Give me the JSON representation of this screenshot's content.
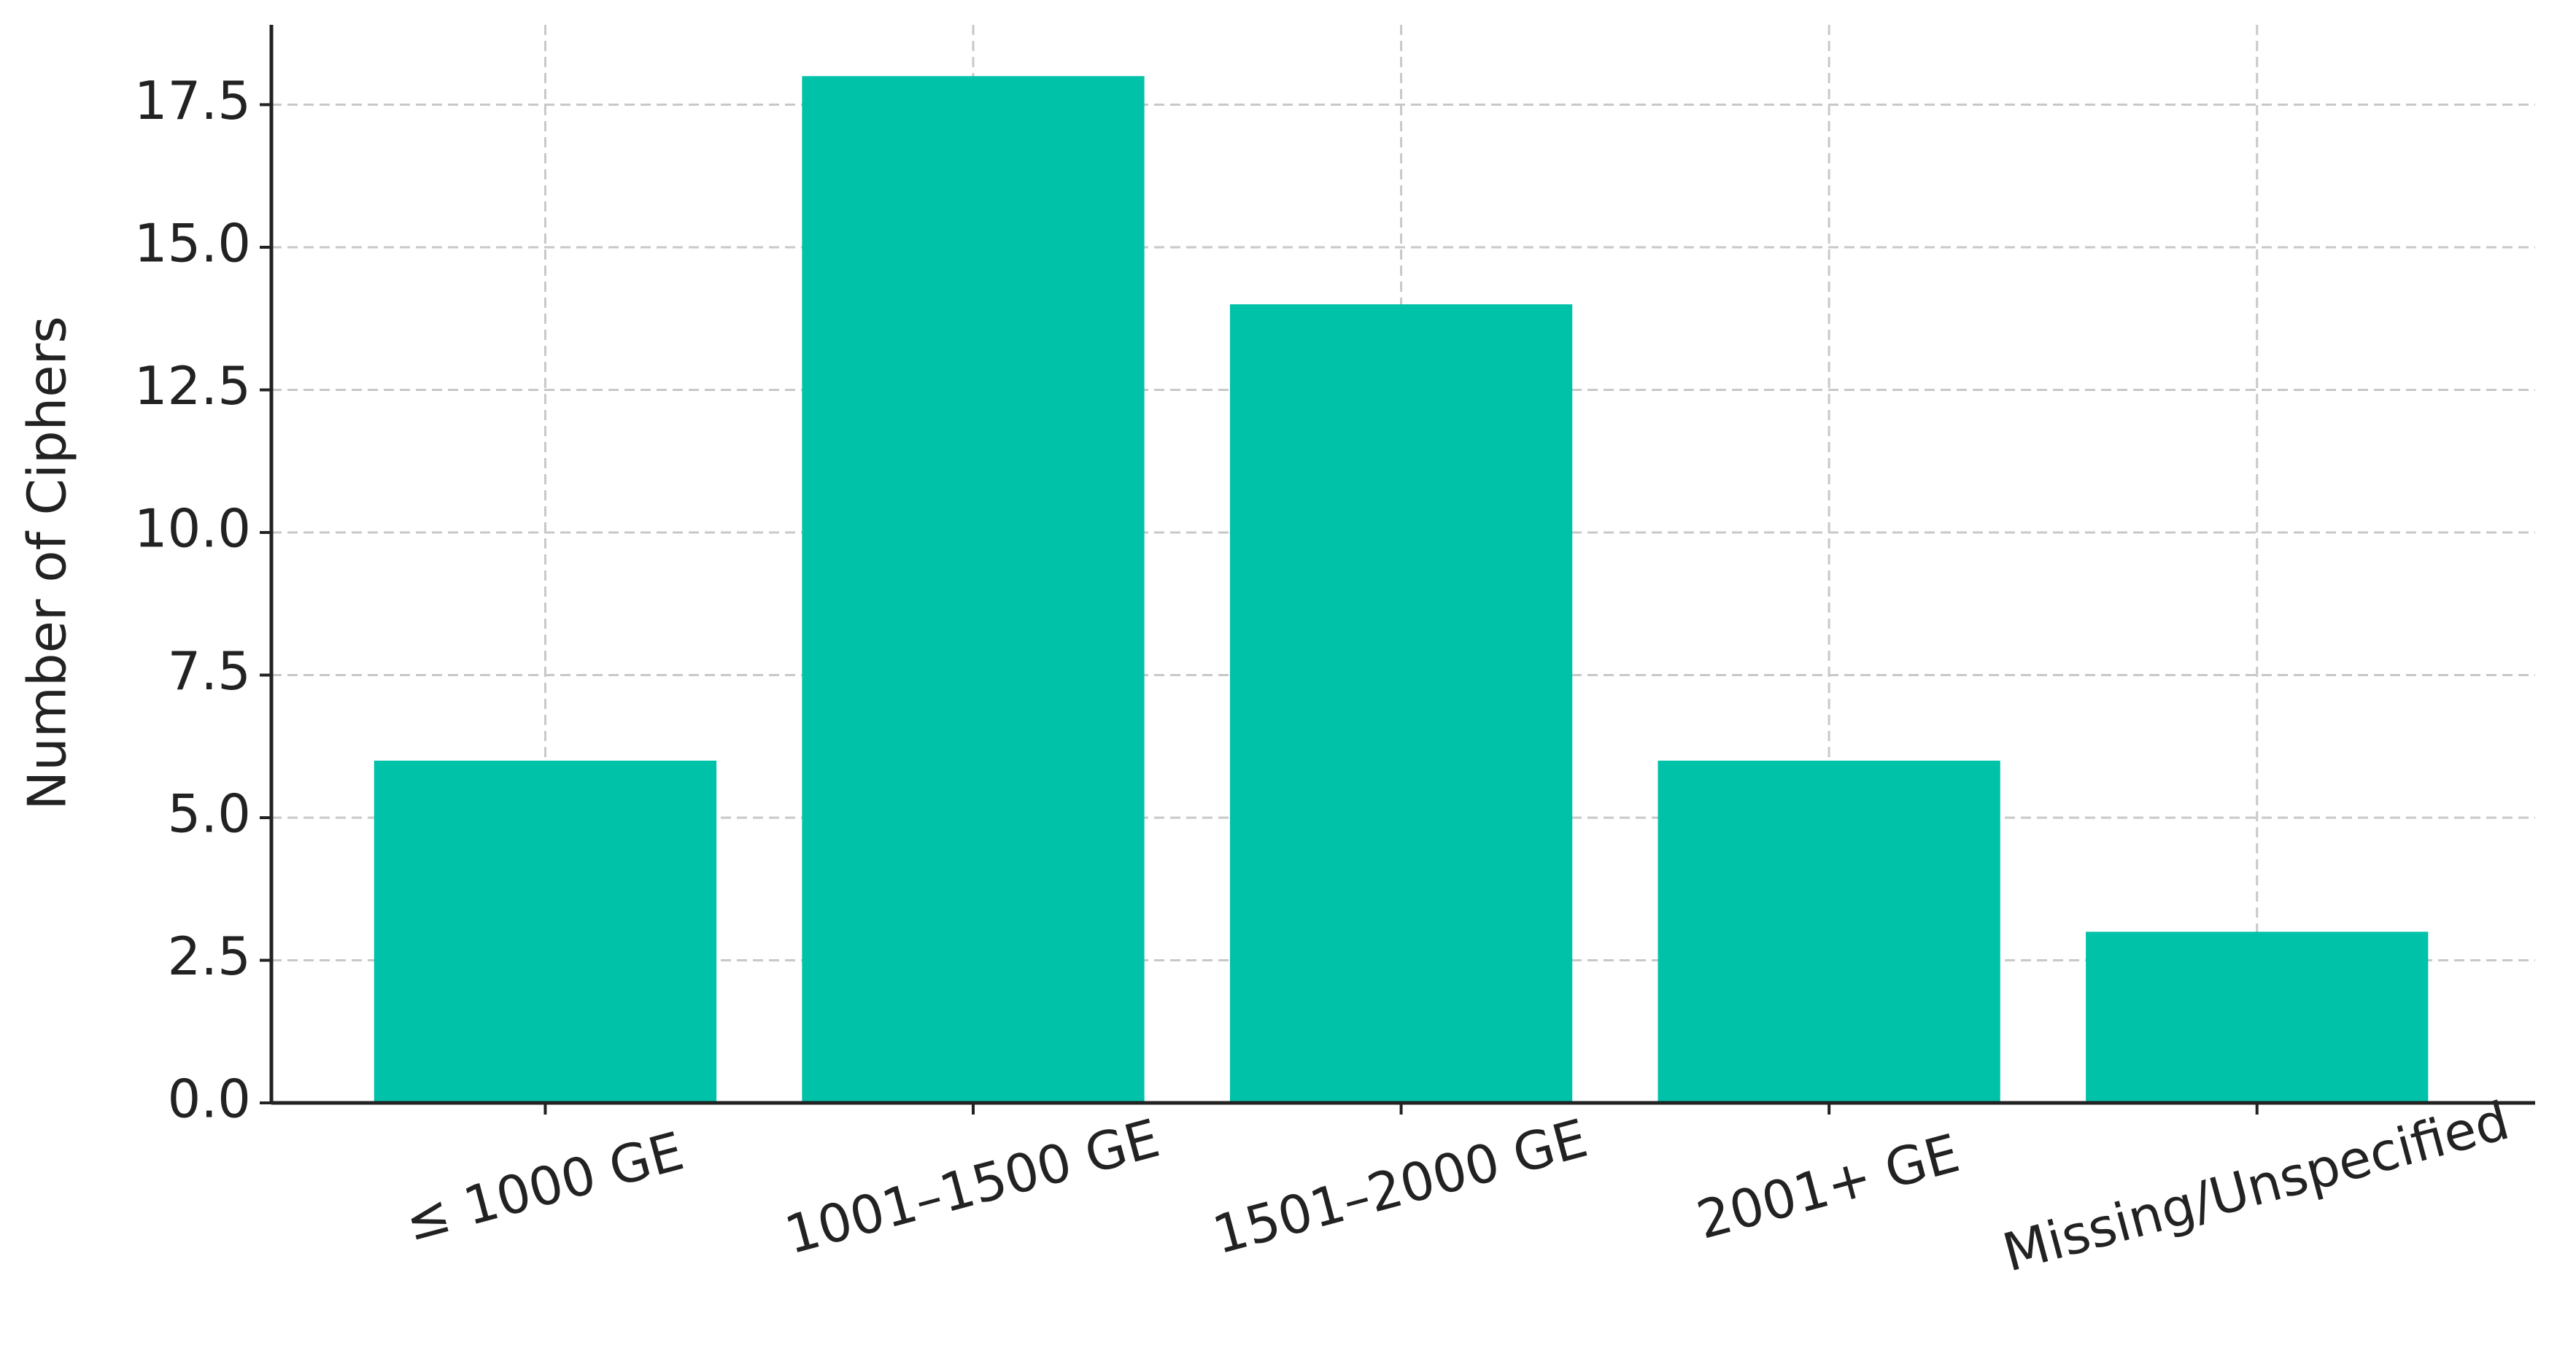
{
  "chart_data": {
    "type": "bar",
    "ylabel": "Number of Ciphers",
    "categories": [
      "≤ 1000 GE",
      "1001–1500 GE",
      "1501–2000 GE",
      "2001+ GE",
      "Missing/Unspecified"
    ],
    "values": [
      6,
      18,
      14,
      6,
      3
    ],
    "color": "#00c2a8",
    "ylim": [
      0,
      18.9
    ],
    "yticks": [
      {
        "value": 0,
        "label": "0.0"
      },
      {
        "value": 2.5,
        "label": "2.5"
      },
      {
        "value": 5,
        "label": "5.0"
      },
      {
        "value": 7.5,
        "label": "7.5"
      },
      {
        "value": 10,
        "label": "10.0"
      },
      {
        "value": 12.5,
        "label": "12.5"
      },
      {
        "value": 15,
        "label": "15.0"
      },
      {
        "value": 17.5,
        "label": "17.5"
      }
    ],
    "grid": true
  }
}
